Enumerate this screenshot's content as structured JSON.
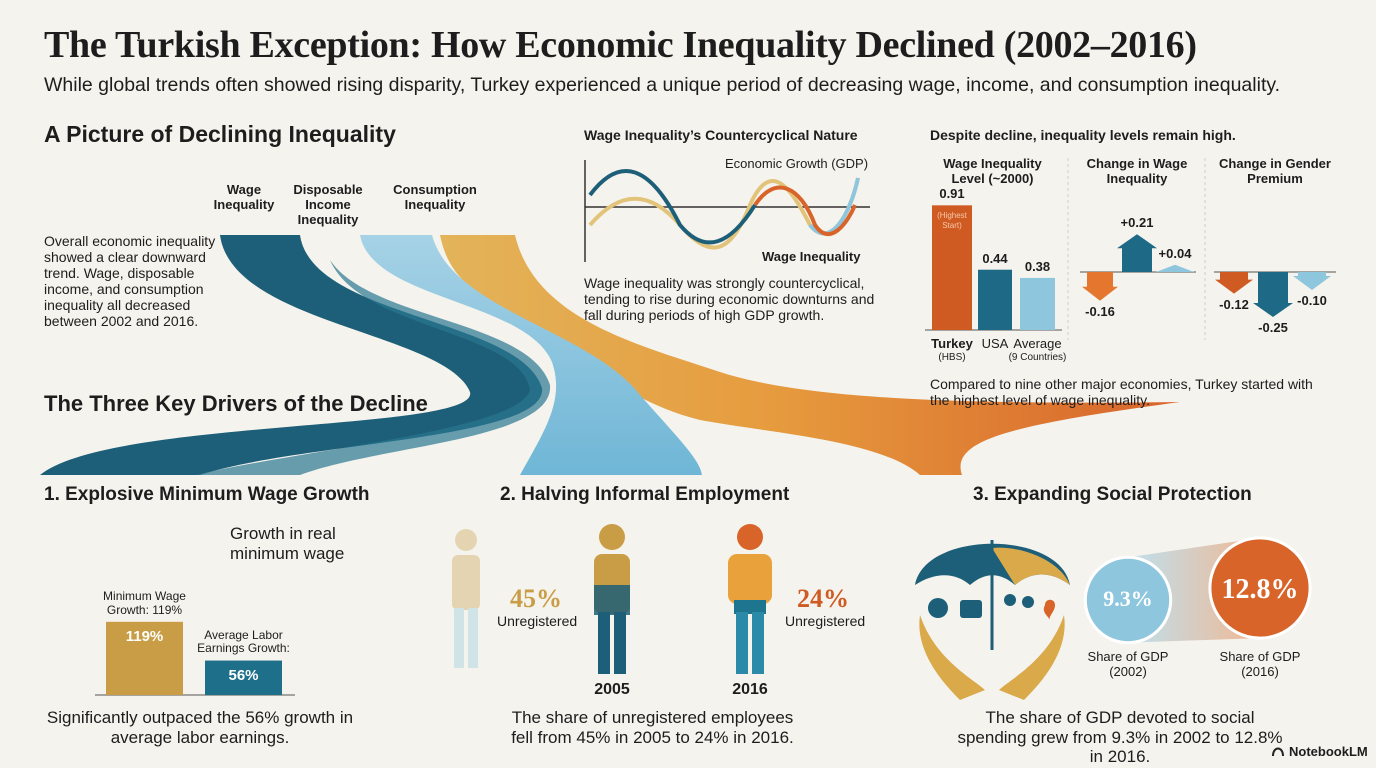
{
  "header": {
    "title": "The Turkish Exception: How Economic Inequality Declined (2002–2016)",
    "subtitle": "While global trends often showed rising disparity, Turkey experienced a unique period of decreasing wage, income, and consumption inequality."
  },
  "overview": {
    "heading": "A Picture of Declining Inequality",
    "streams": [
      "Wage Inequality",
      "Disposable Income Inequality",
      "Consumption Inequality"
    ],
    "text": "Overall economic inequality showed a clear downward trend. Wage, disposable income, and consumption inequality all decreased between 2002 and 2016.",
    "drivers_heading": "The Three Key Drivers of the Decline"
  },
  "cycle": {
    "title": "Wage Inequality’s Countercyclical Nature",
    "gdp_label": "Economic Growth (GDP)",
    "wage_label": "Wage Inequality",
    "text": "Wage inequality was strongly countercyclical, tending to rise during economic downturns and fall during periods of high GDP growth."
  },
  "levels": {
    "title": "Despite decline, inequality levels remain high.",
    "level_panel": {
      "title": "Wage Inequality Level (~2000)",
      "bars": [
        {
          "label": "Turkey",
          "note": "(HBS)",
          "value": 0.91,
          "annotation": "(Highest Start)",
          "color": "#cf5a22"
        },
        {
          "label": "USA",
          "value": 0.44,
          "color": "#1e6a86"
        },
        {
          "label": "Average",
          "note": "(9 Countries)",
          "value": 0.38,
          "color": "#8ec6de"
        }
      ]
    },
    "change_panels": [
      {
        "title": "Change in Wage Inequality",
        "values": [
          {
            "value": -0.16,
            "label": "-0.16"
          },
          {
            "value": 0.21,
            "label": "+0.21"
          },
          {
            "value": 0.04,
            "label": "+0.04"
          }
        ],
        "colors": [
          "#e4772d",
          "#1e6a86",
          "#8ec6de"
        ]
      },
      {
        "title": "Change in Gender Premium",
        "values": [
          {
            "value": -0.12,
            "label": "-0.12"
          },
          {
            "value": -0.25,
            "label": "-0.25"
          },
          {
            "value": -0.1,
            "label": "-0.10"
          }
        ],
        "colors": [
          "#cf5a22",
          "#1e6a86",
          "#8ec6de"
        ]
      }
    ],
    "text": "Compared to nine other major economies, Turkey started with the highest level of wage inequality."
  },
  "drivers": [
    {
      "heading": "1. Explosive Minimum Wage Growth",
      "chart_title": "Growth in real minimum wage",
      "bars": [
        {
          "label": "Minimum Wage Growth: 119%",
          "value": 119,
          "value_label": "119%",
          "color": "#c99d45"
        },
        {
          "label": "Average Labor Earnings Growth:",
          "value": 56,
          "value_label": "56%",
          "color": "#1e6f8a"
        }
      ],
      "text": "Significantly outpaced the 56% growth in average labor earnings."
    },
    {
      "heading": "2. Halving Informal Employment",
      "years": [
        {
          "year": "2005",
          "value": 45,
          "value_label": "45%",
          "note": "Unregistered",
          "color": "#c99d45"
        },
        {
          "year": "2016",
          "value": 24,
          "value_label": "24%",
          "note": "Unregistered",
          "color": "#cf5a22"
        }
      ],
      "text": "The share of unregistered employees fell from 45% in 2005 to 24% in 2016."
    },
    {
      "heading": "3. Expanding Social Protection",
      "shares": [
        {
          "value": 9.3,
          "value_label": "9.3%",
          "label": "Share of GDP (2002)",
          "color": "#8ec6de"
        },
        {
          "value": 12.8,
          "value_label": "12.8%",
          "label": "Share of GDP (2016)",
          "color": "#d8642a"
        }
      ],
      "text": "The share of GDP devoted to social spending grew from 9.3% in 2002 to 12.8% in 2016."
    }
  ],
  "footer": {
    "brand": "NotebookLM"
  }
}
